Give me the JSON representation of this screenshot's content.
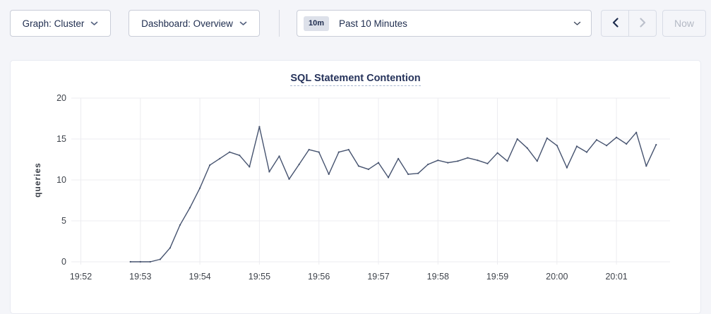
{
  "toolbar": {
    "graph_selector": {
      "label": "Graph: Cluster"
    },
    "dashboard_selector": {
      "label": "Dashboard: Overview"
    },
    "time_selector": {
      "range_badge": "10m",
      "range_label": "Past 10 Minutes"
    },
    "now_button_label": "Now",
    "icons": {
      "graph_selector": "chevron-down",
      "dashboard_selector": "chevron-down",
      "time_selector": "chevron-down",
      "nav_back": "chevron-left",
      "nav_forward": "chevron-right"
    },
    "nav_back_enabled": true,
    "nav_forward_enabled": false
  },
  "chart_data": {
    "type": "line",
    "title": "SQL Statement Contention",
    "xlabel": "",
    "ylabel": "queries",
    "ylim": [
      0,
      20
    ],
    "y_ticks": [
      0,
      5,
      10,
      15,
      20
    ],
    "x_ticks": [
      "19:52",
      "19:53",
      "19:54",
      "19:55",
      "19:56",
      "19:57",
      "19:58",
      "19:59",
      "20:00",
      "20:01"
    ],
    "x_domain_minutes": [
      -0.16,
      9.9
    ],
    "grid": true,
    "legend": "none",
    "series": [
      {
        "name": "queries",
        "start_time": "19:52:50",
        "interval_seconds": 10,
        "x_start_min": 0.8333,
        "x_step_min": 0.16667,
        "values": [
          0,
          0,
          0,
          0.3,
          1.7,
          4.5,
          6.6,
          9,
          11.8,
          12.6,
          13.4,
          13,
          11.6,
          16.5,
          11,
          12.9,
          10.1,
          11.9,
          13.7,
          13.4,
          10.7,
          13.4,
          13.7,
          11.7,
          11.3,
          12.1,
          10.3,
          12.6,
          10.7,
          10.8,
          11.9,
          12.4,
          12.1,
          12.3,
          12.7,
          12.4,
          12,
          13.3,
          12.3,
          15,
          13.9,
          12.3,
          15.1,
          14.2,
          11.5,
          14.1,
          13.4,
          14.9,
          14.2,
          15.2,
          14.4,
          15.8,
          11.7,
          14.3
        ]
      }
    ],
    "colors": {
      "line": "#46536f",
      "grid": "#ececf0",
      "tick_text": "#3e434b",
      "title": "#26335b"
    }
  }
}
